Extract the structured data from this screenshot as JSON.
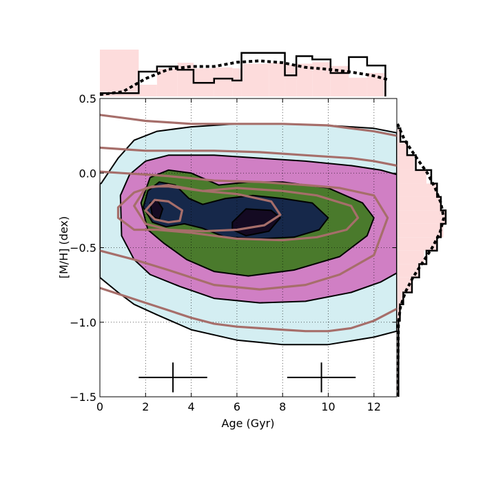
{
  "chart_data": {
    "type": "contour",
    "xlabel": "Age (Gyr)",
    "ylabel": "[M/H] (dex)",
    "xlim": [
      0,
      13
    ],
    "ylim": [
      -1.5,
      0.5
    ],
    "xticks": [
      0,
      2,
      4,
      6,
      8,
      10,
      12
    ],
    "xtick_labels": [
      "0",
      "2",
      "4",
      "6",
      "8",
      "10",
      "12"
    ],
    "yticks": [
      -1.5,
      -1.0,
      -0.5,
      0.0,
      0.5
    ],
    "ytick_labels": [
      "−1.5",
      "−1.0",
      "−0.5",
      "0.0",
      "0.5"
    ],
    "grid": true,
    "colors": {
      "level1": "#d4eef2",
      "level2": "#d07fc4",
      "level3": "#4a7a2c",
      "level4": "#16284a",
      "level5": "#140a22",
      "overlay": "#a66e6a",
      "histogram_fill": "#fddcdc"
    },
    "filled_contours": [
      {
        "level": 1,
        "points": [
          [
            0.05,
            -0.07
          ],
          [
            0.8,
            0.1
          ],
          [
            1.5,
            0.22
          ],
          [
            2.5,
            0.28
          ],
          [
            4,
            0.31
          ],
          [
            6,
            0.33
          ],
          [
            8,
            0.33
          ],
          [
            10,
            0.32
          ],
          [
            12,
            0.3
          ],
          [
            13,
            0.27
          ],
          [
            13,
            -1.06
          ],
          [
            12,
            -1.1
          ],
          [
            10,
            -1.15
          ],
          [
            8,
            -1.15
          ],
          [
            6,
            -1.12
          ],
          [
            4,
            -1.05
          ],
          [
            2.5,
            -0.95
          ],
          [
            1.5,
            -0.88
          ],
          [
            0.8,
            -0.8
          ],
          [
            0,
            -0.7
          ],
          [
            0,
            -0.07
          ]
        ]
      },
      {
        "level": 2,
        "points": [
          [
            0.9,
            -0.15
          ],
          [
            1.3,
            -0.01
          ],
          [
            2,
            0.08
          ],
          [
            3,
            0.12
          ],
          [
            5,
            0.12
          ],
          [
            7,
            0.1
          ],
          [
            9,
            0.08
          ],
          [
            11,
            0.05
          ],
          [
            12.3,
            0.02
          ],
          [
            13,
            -0.01
          ],
          [
            13,
            -0.67
          ],
          [
            12.3,
            -0.73
          ],
          [
            11,
            -0.8
          ],
          [
            9,
            -0.86
          ],
          [
            7,
            -0.87
          ],
          [
            5,
            -0.84
          ],
          [
            3.5,
            -0.76
          ],
          [
            2.2,
            -0.68
          ],
          [
            1.5,
            -0.58
          ],
          [
            0.95,
            -0.42
          ],
          [
            0.9,
            -0.15
          ]
        ]
      },
      {
        "level": 3,
        "points": [
          [
            1.8,
            -0.2
          ],
          [
            2.2,
            -0.03
          ],
          [
            3,
            0.02
          ],
          [
            4,
            0.0
          ],
          [
            5.2,
            -0.08
          ],
          [
            6.5,
            -0.06
          ],
          [
            8,
            -0.06
          ],
          [
            10,
            -0.1
          ],
          [
            11.5,
            -0.2
          ],
          [
            12,
            -0.3
          ],
          [
            11.7,
            -0.42
          ],
          [
            10.5,
            -0.56
          ],
          [
            8.5,
            -0.65
          ],
          [
            6.5,
            -0.69
          ],
          [
            5,
            -0.66
          ],
          [
            3.8,
            -0.58
          ],
          [
            2.8,
            -0.47
          ],
          [
            2.1,
            -0.38
          ],
          [
            1.8,
            -0.2
          ]
        ]
      },
      {
        "level": 4,
        "points": [
          [
            1.9,
            -0.23
          ],
          [
            2.1,
            -0.12
          ],
          [
            2.6,
            -0.06
          ],
          [
            3.3,
            -0.08
          ],
          [
            3.9,
            -0.17
          ],
          [
            4.5,
            -0.21
          ],
          [
            5.5,
            -0.17
          ],
          [
            6.7,
            -0.15
          ],
          [
            8,
            -0.17
          ],
          [
            9.3,
            -0.2
          ],
          [
            10,
            -0.3
          ],
          [
            9.6,
            -0.38
          ],
          [
            8.5,
            -0.43
          ],
          [
            7,
            -0.44
          ],
          [
            5.5,
            -0.43
          ],
          [
            4.5,
            -0.37
          ],
          [
            3.7,
            -0.34
          ],
          [
            2.9,
            -0.36
          ],
          [
            2.3,
            -0.33
          ],
          [
            1.9,
            -0.23
          ]
        ]
      },
      {
        "level": 5,
        "points": [
          [
            2.2,
            -0.2
          ],
          [
            2.5,
            -0.18
          ],
          [
            2.75,
            -0.24
          ],
          [
            2.6,
            -0.31
          ],
          [
            2.3,
            -0.29
          ],
          [
            2.2,
            -0.2
          ]
        ]
      },
      {
        "level": 5,
        "points": [
          [
            5.8,
            -0.33
          ],
          [
            6.4,
            -0.24
          ],
          [
            7.5,
            -0.25
          ],
          [
            7.9,
            -0.3
          ],
          [
            7.4,
            -0.39
          ],
          [
            6.4,
            -0.42
          ],
          [
            5.8,
            -0.38
          ],
          [
            5.8,
            -0.33
          ]
        ]
      }
    ],
    "overlay_contours": [
      {
        "closed": false,
        "points": [
          [
            0,
            0.39
          ],
          [
            1,
            0.37
          ],
          [
            2,
            0.35
          ],
          [
            3,
            0.34
          ],
          [
            4,
            0.33
          ],
          [
            6,
            0.33
          ],
          [
            8,
            0.33
          ],
          [
            10,
            0.32
          ],
          [
            12,
            0.28
          ],
          [
            13,
            0.25
          ]
        ]
      },
      {
        "closed": false,
        "points": [
          [
            0,
            0.17
          ],
          [
            1,
            0.16
          ],
          [
            2,
            0.15
          ],
          [
            3,
            0.15
          ],
          [
            5,
            0.15
          ],
          [
            7,
            0.14
          ],
          [
            9,
            0.12
          ],
          [
            11,
            0.1
          ],
          [
            12,
            0.08
          ],
          [
            13,
            0.05
          ]
        ]
      },
      {
        "closed": false,
        "points": [
          [
            0,
            0.01
          ],
          [
            1,
            0.0
          ],
          [
            2,
            -0.01
          ],
          [
            3,
            -0.02
          ],
          [
            5,
            -0.05
          ],
          [
            7,
            -0.06
          ],
          [
            9,
            -0.08
          ],
          [
            10.5,
            -0.1
          ],
          [
            12,
            -0.15
          ],
          [
            12.6,
            -0.3
          ],
          [
            12,
            -0.55
          ],
          [
            10.5,
            -0.68
          ],
          [
            9,
            -0.75
          ],
          [
            7,
            -0.78
          ],
          [
            5,
            -0.75
          ],
          [
            3,
            -0.65
          ],
          [
            1.5,
            -0.58
          ],
          [
            0,
            -0.52
          ]
        ]
      },
      {
        "closed": true,
        "points": [
          [
            0.8,
            -0.23
          ],
          [
            1.5,
            -0.13
          ],
          [
            2.3,
            -0.09
          ],
          [
            3,
            -0.09
          ],
          [
            4.5,
            -0.12
          ],
          [
            6,
            -0.1
          ],
          [
            8,
            -0.12
          ],
          [
            9.5,
            -0.15
          ],
          [
            11,
            -0.22
          ],
          [
            11.3,
            -0.3
          ],
          [
            10.8,
            -0.38
          ],
          [
            9.5,
            -0.43
          ],
          [
            8,
            -0.45
          ],
          [
            6,
            -0.44
          ],
          [
            4,
            -0.4
          ],
          [
            2.5,
            -0.38
          ],
          [
            1.5,
            -0.38
          ],
          [
            0.8,
            -0.3
          ],
          [
            0.8,
            -0.23
          ]
        ]
      },
      {
        "closed": true,
        "points": [
          [
            1.5,
            -0.22
          ],
          [
            2,
            -0.1
          ],
          [
            3,
            -0.08
          ],
          [
            4.5,
            -0.12
          ],
          [
            6,
            -0.14
          ],
          [
            7.5,
            -0.19
          ],
          [
            7.9,
            -0.28
          ],
          [
            7.2,
            -0.35
          ],
          [
            6,
            -0.38
          ],
          [
            4.5,
            -0.39
          ],
          [
            3,
            -0.38
          ],
          [
            2,
            -0.34
          ],
          [
            1.5,
            -0.22
          ]
        ]
      },
      {
        "closed": true,
        "points": [
          [
            2.0,
            -0.25
          ],
          [
            2.4,
            -0.18
          ],
          [
            3.0,
            -0.19
          ],
          [
            3.6,
            -0.25
          ],
          [
            3.5,
            -0.32
          ],
          [
            3.0,
            -0.33
          ],
          [
            2.4,
            -0.31
          ],
          [
            2.0,
            -0.25
          ]
        ]
      },
      {
        "closed": false,
        "points": [
          [
            0,
            -0.77
          ],
          [
            1,
            -0.82
          ],
          [
            2,
            -0.87
          ],
          [
            3,
            -0.92
          ],
          [
            4,
            -0.97
          ],
          [
            5,
            -1.01
          ],
          [
            6,
            -1.03
          ],
          [
            7,
            -1.04
          ],
          [
            8,
            -1.05
          ],
          [
            9,
            -1.06
          ],
          [
            10,
            -1.06
          ],
          [
            11,
            -1.04
          ],
          [
            12,
            -0.99
          ],
          [
            13,
            -0.91
          ]
        ]
      }
    ],
    "error_crosses": [
      {
        "x": 3.2,
        "y": -1.37,
        "xerr": 1.5,
        "yerr": 0.1
      },
      {
        "x": 9.7,
        "y": -1.37,
        "xerr": 1.5,
        "yerr": 0.1
      }
    ],
    "top_marginal": {
      "x_edges": [
        0,
        1.7,
        2.5,
        3.4,
        4.1,
        5.0,
        5.8,
        6.2,
        7.4,
        8.1,
        8.6,
        9.3,
        10.1,
        10.9,
        11.7,
        12.5
      ],
      "histogram_heights": [
        0.07,
        0.53,
        0.64,
        0.57,
        0.29,
        0.38,
        0.34,
        0.93,
        0.93,
        0.45,
        0.86,
        0.79,
        0.5,
        0.84,
        0.66
      ],
      "filled_heights": [
        1.0,
        0.25,
        0.6,
        0.72,
        0.6,
        0.62,
        0.6,
        0.7,
        0.72,
        0.68,
        0.7,
        0.73,
        0.65,
        0.4,
        0.5
      ],
      "kde": [
        [
          0,
          0.04
        ],
        [
          1,
          0.1
        ],
        [
          2,
          0.38
        ],
        [
          3,
          0.58
        ],
        [
          4,
          0.64
        ],
        [
          5,
          0.64
        ],
        [
          6,
          0.73
        ],
        [
          7,
          0.76
        ],
        [
          8,
          0.72
        ],
        [
          9,
          0.62
        ],
        [
          10,
          0.58
        ],
        [
          11,
          0.52
        ],
        [
          12,
          0.44
        ],
        [
          12.6,
          0.36
        ]
      ]
    },
    "right_marginal": {
      "y_edges": [
        0.3,
        0.21,
        0.12,
        0.02,
        -0.07,
        -0.16,
        -0.25,
        -0.34,
        -0.43,
        -0.52,
        -0.61,
        -0.7,
        -0.8,
        -0.88,
        -0.99,
        -1.5
      ],
      "histogram_widths": [
        0.06,
        0.2,
        0.38,
        0.7,
        0.82,
        0.9,
        1.0,
        0.9,
        0.82,
        0.6,
        0.45,
        0.3,
        0.12,
        0.05,
        0.02
      ],
      "filled_widths": [
        0.05,
        0.2,
        0.35,
        0.6,
        0.8,
        0.9,
        1.0,
        0.95,
        0.8,
        0.55,
        0.45,
        0.3,
        0.12,
        0.05,
        0.02
      ],
      "kde": [
        [
          0.33,
          0.0
        ],
        [
          0.22,
          0.15
        ],
        [
          0.1,
          0.4
        ],
        [
          0.0,
          0.62
        ],
        [
          -0.1,
          0.78
        ],
        [
          -0.2,
          0.9
        ],
        [
          -0.3,
          0.96
        ],
        [
          -0.4,
          0.88
        ],
        [
          -0.5,
          0.72
        ],
        [
          -0.6,
          0.52
        ],
        [
          -0.7,
          0.32
        ],
        [
          -0.8,
          0.16
        ],
        [
          -0.9,
          0.06
        ],
        [
          -1.0,
          0.02
        ],
        [
          -1.5,
          0.0
        ]
      ]
    }
  }
}
